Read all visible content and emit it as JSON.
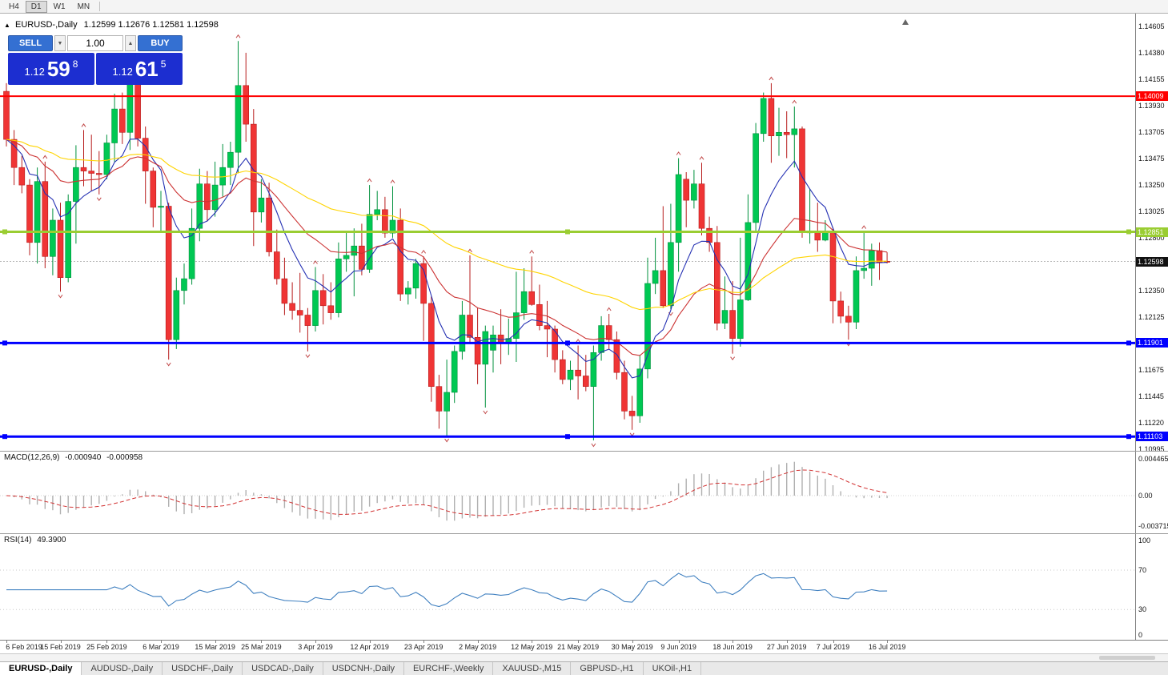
{
  "toolbar": {
    "timeframes": [
      "H4",
      "D1",
      "W1",
      "MN"
    ],
    "active": "D1"
  },
  "chart": {
    "symbol_period": "EURUSD-,Daily",
    "ohlc_text": "1.12599 1.12676 1.12581 1.12598",
    "collapse_arrow": "▲"
  },
  "trade_panel": {
    "sell_label": "SELL",
    "buy_label": "BUY",
    "volume": "1.00",
    "spin_down": "▼",
    "spin_up": "▲",
    "sell_price": {
      "small": "1.12",
      "big": "59",
      "sup": "8"
    },
    "buy_price": {
      "small": "1.12",
      "big": "61",
      "sup": "5"
    }
  },
  "price_axis": {
    "ticks": [
      "1.14605",
      "1.14380",
      "1.14155",
      "1.13930",
      "1.13705",
      "1.13475",
      "1.13250",
      "1.13025",
      "1.12800",
      "1.12350",
      "1.12125",
      "1.11675",
      "1.11445",
      "1.11220",
      "1.10995"
    ]
  },
  "hlines": [
    {
      "value": 1.14009,
      "label": "1.14009",
      "color_key": "hline_red",
      "width": 2,
      "handles": false
    },
    {
      "value": 1.12851,
      "label": "1.12851",
      "color_key": "hline_green",
      "width": 3,
      "handles": true
    },
    {
      "value": 1.11901,
      "label": "1.11901",
      "color_key": "hline_blue",
      "width": 3,
      "handles": true
    },
    {
      "value": 1.11103,
      "label": "1.11103",
      "color_key": "hline_blue",
      "width": 3,
      "handles": true
    }
  ],
  "current_price": {
    "value": 1.12598,
    "label": "1.12598"
  },
  "macd": {
    "name": "MACD(12,26,9)",
    "value_main": "-0.000940",
    "value_signal": "-0.000958",
    "axis_labels": [
      "0.004465",
      "0.00",
      "-0.003715"
    ],
    "fast": 12,
    "slow": 26,
    "signal": 9
  },
  "rsi": {
    "name": "RSI(14)",
    "value": "49.3900",
    "axis_labels": [
      "100",
      "70",
      "30",
      "0"
    ],
    "period": 14,
    "levels": [
      70,
      30
    ]
  },
  "tabs": [
    {
      "label": "EURUSD-,Daily",
      "active": true
    },
    {
      "label": "AUDUSD-,Daily",
      "active": false
    },
    {
      "label": "USDCHF-,Daily",
      "active": false
    },
    {
      "label": "USDCAD-,Daily",
      "active": false
    },
    {
      "label": "USDCNH-,Daily",
      "active": false
    },
    {
      "label": "EURCHF-,Weekly",
      "active": false
    },
    {
      "label": "XAUUSD-,M15",
      "active": false
    },
    {
      "label": "GBPUSD-,H1",
      "active": false
    },
    {
      "label": "UKOil-,H1",
      "active": false
    }
  ],
  "colors": {
    "buy_sell_button": "#3470d2",
    "price_box": "#1c2ed0",
    "up": "#00c853",
    "up_border": "#00913d",
    "down": "#ef3535",
    "down_border": "#b71c1c",
    "ma_fast": "#2430b3",
    "ma_mid": "#cc3333",
    "ma_slow": "#ffd400",
    "hline_red": "#ff0000",
    "hline_green": "#9acd32",
    "hline_blue": "#0000ff",
    "current_label_bg": "#111111",
    "macd_hist": "#b0b0b0",
    "macd_signal": "#d23333",
    "rsi": "#4080c0",
    "fractal": "#c24a4a"
  },
  "chart_data": {
    "type": "candlestick",
    "symbol": "EURUSD-,Daily",
    "price_range": {
      "min": 1.10981,
      "max": 1.14714
    },
    "x_tick_labels": [
      "6 Feb 2019",
      "15 Feb 2019",
      "25 Feb 2019",
      "6 Mar 2019",
      "15 Mar 2019",
      "25 Mar 2019",
      "3 Apr 2019",
      "12 Apr 2019",
      "23 Apr 2019",
      "2 May 2019",
      "12 May 2019",
      "21 May 2019",
      "30 May 2019",
      "9 Jun 2019",
      "18 Jun 2019",
      "27 Jun 2019",
      "7 Jul 2019",
      "16 Jul 2019"
    ],
    "x_tick_indices": [
      0,
      7,
      13,
      20,
      27,
      33,
      40,
      47,
      54,
      61,
      68,
      74,
      81,
      87,
      94,
      101,
      107,
      114
    ],
    "candles": [
      [
        1.1405,
        1.1412,
        1.1358,
        1.1364
      ],
      [
        1.1364,
        1.1372,
        1.1325,
        1.134
      ],
      [
        1.134,
        1.135,
        1.1318,
        1.1325
      ],
      [
        1.1325,
        1.133,
        1.1265,
        1.1276
      ],
      [
        1.1276,
        1.134,
        1.1258,
        1.1328
      ],
      [
        1.1328,
        1.1345,
        1.1254,
        1.1264
      ],
      [
        1.1264,
        1.1305,
        1.1248,
        1.1295
      ],
      [
        1.1295,
        1.131,
        1.1234,
        1.1246
      ],
      [
        1.1246,
        1.1317,
        1.1242,
        1.1311
      ],
      [
        1.1311,
        1.1359,
        1.1275,
        1.134
      ],
      [
        1.134,
        1.1372,
        1.1324,
        1.1337
      ],
      [
        1.1337,
        1.1368,
        1.132,
        1.1335
      ],
      [
        1.1335,
        1.1354,
        1.1317,
        1.1334
      ],
      [
        1.1334,
        1.1368,
        1.133,
        1.1361
      ],
      [
        1.1361,
        1.1403,
        1.1345,
        1.139
      ],
      [
        1.139,
        1.1404,
        1.136,
        1.137
      ],
      [
        1.137,
        1.1421,
        1.1355,
        1.1413
      ],
      [
        1.1413,
        1.1419,
        1.1358,
        1.1365
      ],
      [
        1.1365,
        1.1375,
        1.1309,
        1.1337
      ],
      [
        1.1337,
        1.134,
        1.1289,
        1.1306
      ],
      [
        1.1306,
        1.132,
        1.1285,
        1.1307
      ],
      [
        1.1307,
        1.131,
        1.1176,
        1.1193
      ],
      [
        1.1193,
        1.1246,
        1.1185,
        1.1235
      ],
      [
        1.1235,
        1.1258,
        1.1223,
        1.1245
      ],
      [
        1.1245,
        1.1305,
        1.124,
        1.1288
      ],
      [
        1.1288,
        1.1339,
        1.1277,
        1.1326
      ],
      [
        1.1326,
        1.1337,
        1.1294,
        1.1304
      ],
      [
        1.1304,
        1.1345,
        1.1298,
        1.1325
      ],
      [
        1.1325,
        1.136,
        1.1315,
        1.134
      ],
      [
        1.134,
        1.1362,
        1.1325,
        1.1353
      ],
      [
        1.1353,
        1.1448,
        1.1335,
        1.141
      ],
      [
        1.141,
        1.1438,
        1.1362,
        1.1377
      ],
      [
        1.1377,
        1.139,
        1.1273,
        1.1302
      ],
      [
        1.1302,
        1.133,
        1.1293,
        1.1314
      ],
      [
        1.1314,
        1.1327,
        1.1264,
        1.1268
      ],
      [
        1.1268,
        1.1287,
        1.124,
        1.1245
      ],
      [
        1.1245,
        1.1263,
        1.1214,
        1.1224
      ],
      [
        1.1224,
        1.1242,
        1.121,
        1.1218
      ],
      [
        1.1218,
        1.125,
        1.1199,
        1.1214
      ],
      [
        1.1214,
        1.122,
        1.1183,
        1.1205
      ],
      [
        1.1205,
        1.1255,
        1.12,
        1.1235
      ],
      [
        1.1235,
        1.1249,
        1.1206,
        1.1222
      ],
      [
        1.1222,
        1.1242,
        1.121,
        1.1216
      ],
      [
        1.1216,
        1.1276,
        1.1212,
        1.1262
      ],
      [
        1.1262,
        1.1285,
        1.1251,
        1.1265
      ],
      [
        1.1265,
        1.1288,
        1.123,
        1.1273
      ],
      [
        1.1273,
        1.1292,
        1.1248,
        1.1253
      ],
      [
        1.1253,
        1.1325,
        1.125,
        1.13
      ],
      [
        1.13,
        1.132,
        1.1295,
        1.1304
      ],
      [
        1.1304,
        1.1315,
        1.128,
        1.1284
      ],
      [
        1.1284,
        1.1324,
        1.128,
        1.1295
      ],
      [
        1.1295,
        1.1305,
        1.1226,
        1.1232
      ],
      [
        1.1232,
        1.1243,
        1.1223,
        1.1237
      ],
      [
        1.1237,
        1.1262,
        1.1228,
        1.1258
      ],
      [
        1.1258,
        1.1264,
        1.1192,
        1.1224
      ],
      [
        1.1224,
        1.123,
        1.114,
        1.1153
      ],
      [
        1.1153,
        1.1163,
        1.1117,
        1.1132
      ],
      [
        1.1132,
        1.1176,
        1.1111,
        1.1148
      ],
      [
        1.1148,
        1.1188,
        1.1139,
        1.1183
      ],
      [
        1.1183,
        1.1226,
        1.1176,
        1.1214
      ],
      [
        1.1214,
        1.1265,
        1.119,
        1.1195
      ],
      [
        1.1195,
        1.122,
        1.1155,
        1.1172
      ],
      [
        1.1172,
        1.1205,
        1.1135,
        1.12
      ],
      [
        1.1184,
        1.1205,
        1.1165,
        1.1197
      ],
      [
        1.1197,
        1.1219,
        1.1172,
        1.119
      ],
      [
        1.119,
        1.1211,
        1.118,
        1.1194
      ],
      [
        1.1194,
        1.1251,
        1.1174,
        1.1216
      ],
      [
        1.1216,
        1.1254,
        1.121,
        1.1234
      ],
      [
        1.1234,
        1.1264,
        1.1222,
        1.1223
      ],
      [
        1.1223,
        1.124,
        1.1201,
        1.1205
      ],
      [
        1.1205,
        1.1226,
        1.1178,
        1.1202
      ],
      [
        1.1202,
        1.1205,
        1.1165,
        1.1176
      ],
      [
        1.1176,
        1.1184,
        1.1155,
        1.1159
      ],
      [
        1.1159,
        1.1175,
        1.115,
        1.1167
      ],
      [
        1.1167,
        1.1188,
        1.1142,
        1.1162
      ],
      [
        1.1162,
        1.118,
        1.1149,
        1.1153
      ],
      [
        1.1153,
        1.1188,
        1.1107,
        1.1182
      ],
      [
        1.1182,
        1.1213,
        1.1175,
        1.1205
      ],
      [
        1.1205,
        1.1215,
        1.1185,
        1.1193
      ],
      [
        1.1193,
        1.12,
        1.1159,
        1.1165
      ],
      [
        1.1165,
        1.1175,
        1.1125,
        1.1132
      ],
      [
        1.1132,
        1.1145,
        1.1116,
        1.1128
      ],
      [
        1.1128,
        1.118,
        1.1122,
        1.1168
      ],
      [
        1.1168,
        1.1263,
        1.116,
        1.1241
      ],
      [
        1.1241,
        1.128,
        1.1232,
        1.1252
      ],
      [
        1.1252,
        1.1307,
        1.122,
        1.1222
      ],
      [
        1.1222,
        1.1309,
        1.1219,
        1.1276
      ],
      [
        1.1276,
        1.1348,
        1.1251,
        1.1334
      ],
      [
        1.133,
        1.1336,
        1.1289,
        1.1312
      ],
      [
        1.1312,
        1.1338,
        1.1305,
        1.1326
      ],
      [
        1.1326,
        1.1344,
        1.1282,
        1.1288
      ],
      [
        1.1288,
        1.1298,
        1.1268,
        1.1276
      ],
      [
        1.1276,
        1.129,
        1.1201,
        1.1207
      ],
      [
        1.1207,
        1.1247,
        1.1202,
        1.1218
      ],
      [
        1.1218,
        1.1243,
        1.1181,
        1.1194
      ],
      [
        1.1194,
        1.128,
        1.1187,
        1.1227
      ],
      [
        1.1227,
        1.1317,
        1.1226,
        1.1293
      ],
      [
        1.1293,
        1.1378,
        1.1285,
        1.1369
      ],
      [
        1.1369,
        1.1404,
        1.1362,
        1.1399
      ],
      [
        1.1399,
        1.1412,
        1.1344,
        1.1367
      ],
      [
        1.1367,
        1.1391,
        1.135,
        1.137
      ],
      [
        1.137,
        1.1388,
        1.1348,
        1.1368
      ],
      [
        1.1368,
        1.1392,
        1.134,
        1.1373
      ],
      [
        1.1373,
        1.1375,
        1.128,
        1.1285
      ],
      [
        1.1285,
        1.1322,
        1.1275,
        1.1285
      ],
      [
        1.1285,
        1.131,
        1.1268,
        1.1278
      ],
      [
        1.1278,
        1.1295,
        1.1277,
        1.1285
      ],
      [
        1.1285,
        1.1289,
        1.1207,
        1.1226
      ],
      [
        1.1226,
        1.1234,
        1.1207,
        1.1213
      ],
      [
        1.1213,
        1.1222,
        1.1193,
        1.1208
      ],
      [
        1.1208,
        1.1264,
        1.1202,
        1.1252
      ],
      [
        1.1252,
        1.1285,
        1.1245,
        1.1254
      ],
      [
        1.1254,
        1.1275,
        1.1239,
        1.1269
      ],
      [
        1.1269,
        1.1276,
        1.1244,
        1.1259
      ],
      [
        1.12599,
        1.12676,
        1.12581,
        1.12598
      ]
    ],
    "moving_averages": [
      {
        "period": 8,
        "color_key": "ma_fast"
      },
      {
        "period": 21,
        "color_key": "ma_mid"
      },
      {
        "period": 55,
        "color_key": "ma_slow"
      }
    ]
  }
}
